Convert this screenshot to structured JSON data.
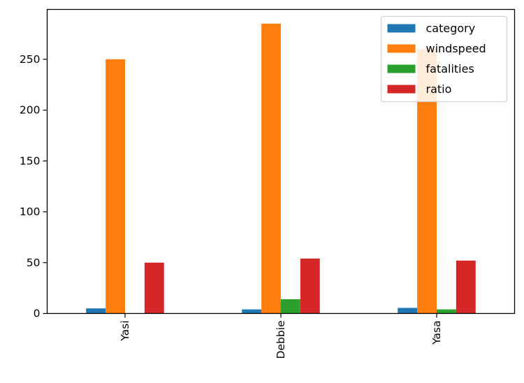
{
  "chart_data": {
    "type": "bar",
    "title": "",
    "xlabel": "",
    "ylabel": "",
    "categories": [
      "Yasi",
      "Debbie",
      "Yasa"
    ],
    "series": [
      {
        "name": "category",
        "values": [
          5,
          4,
          5.5
        ],
        "color": "#1f77b4"
      },
      {
        "name": "windspeed",
        "values": [
          250,
          285,
          260
        ],
        "color": "#ff7f0e"
      },
      {
        "name": "fatalities",
        "values": [
          0,
          14,
          4
        ],
        "color": "#2ca02c"
      },
      {
        "name": "ratio",
        "values": [
          50,
          54,
          52
        ],
        "color": "#d62728"
      }
    ],
    "ylim": [
      0,
      299
    ],
    "yticks": [
      0,
      50,
      100,
      150,
      200,
      250
    ],
    "ytick_labels": [
      "0",
      "50",
      "100",
      "150",
      "200",
      "250"
    ],
    "legend_position": "top-right",
    "grid": false
  }
}
